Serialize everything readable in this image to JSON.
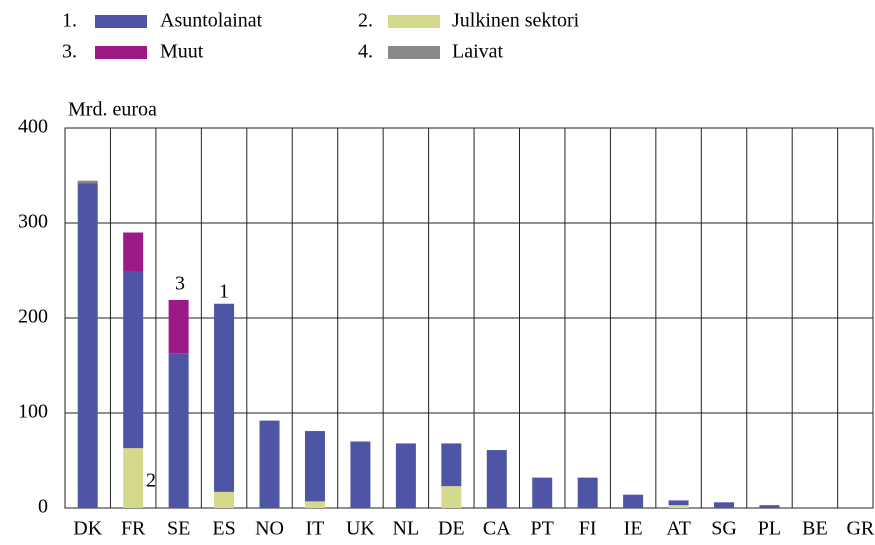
{
  "chart_data": {
    "type": "stacked_bar",
    "y_label": "Mrd. euroa",
    "categories": [
      "DK",
      "FR",
      "SE",
      "ES",
      "NO",
      "IT",
      "UK",
      "NL",
      "DE",
      "CA",
      "PT",
      "FI",
      "IE",
      "AT",
      "SG",
      "PL",
      "BE",
      "GR"
    ],
    "legend_numbers": [
      "1.",
      "2.",
      "3.",
      "4."
    ],
    "series": [
      {
        "name": "Asuntolainat",
        "color": "#4f55a5",
        "values": [
          342,
          186,
          163,
          198,
          92,
          74,
          70,
          68,
          45,
          61,
          32,
          32,
          14,
          5,
          6,
          3,
          0,
          0
        ]
      },
      {
        "name": "Julkinen sektori",
        "color": "#d4d98b",
        "values": [
          0,
          63,
          0,
          17,
          0,
          7,
          0,
          0,
          23,
          0,
          0,
          0,
          0,
          3,
          0,
          0,
          0,
          0
        ]
      },
      {
        "name": "Muut",
        "color": "#9b1a85",
        "values": [
          0,
          41,
          56,
          0,
          0,
          0,
          0,
          0,
          0,
          0,
          0,
          0,
          0,
          0,
          0,
          0,
          0,
          0
        ]
      },
      {
        "name": "Laivat",
        "color": "#888888",
        "values": [
          1,
          0,
          0,
          0,
          0,
          0,
          0,
          0,
          0,
          0,
          0,
          0,
          0,
          0,
          0,
          0,
          0,
          0
        ]
      }
    ],
    "annotations": [
      "1",
      "2",
      "3"
    ],
    "ylim": [
      0,
      400
    ],
    "yticks": [
      0,
      100,
      200,
      300,
      400
    ],
    "grid": true
  }
}
